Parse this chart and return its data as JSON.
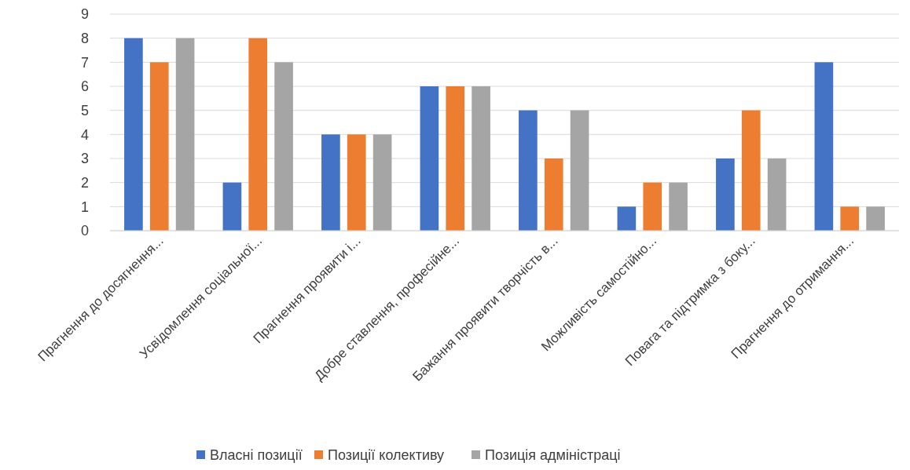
{
  "chart_data": {
    "type": "bar",
    "categories": [
      "Прагнення до досягнення...",
      "Усвідомлення соціальної...",
      "Прагнення проявити і...",
      "Добре ставлення, професійне...",
      "Бажання проявити творчість в...",
      "Можливість самостійно...",
      "Повага та підтримка з боку...",
      "Прагнення до отримання..."
    ],
    "series": [
      {
        "name": "Власні позиції",
        "color": "#4472c4",
        "values": [
          8,
          2,
          4,
          6,
          5,
          1,
          3,
          7
        ]
      },
      {
        "name": "Позиції колективу",
        "color": "#ed7d31",
        "values": [
          7,
          8,
          4,
          6,
          3,
          2,
          5,
          1
        ]
      },
      {
        "name": "Позиція адміністраці",
        "color": "#a5a5a5",
        "values": [
          8,
          7,
          4,
          6,
          5,
          2,
          3,
          1
        ]
      }
    ],
    "ylim": [
      0,
      9
    ],
    "yticks": [
      0,
      1,
      2,
      3,
      4,
      5,
      6,
      7,
      8,
      9
    ],
    "grid": "y",
    "legend": "bottom"
  }
}
